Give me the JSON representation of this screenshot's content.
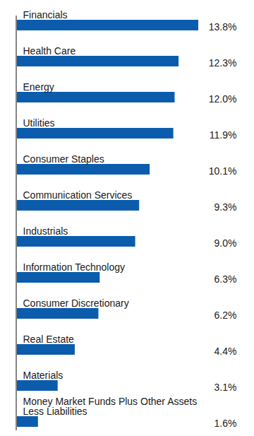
{
  "chart_data": {
    "type": "bar",
    "orientation": "horizontal",
    "categories": [
      "Financials",
      "Health Care",
      "Energy",
      "Utilities",
      "Consumer Staples",
      "Communication Services",
      "Industrials",
      "Information Technology",
      "Consumer Discretionary",
      "Real Estate",
      "Materials",
      "Money Market Funds Plus Other Assets\nLess Liabilities"
    ],
    "values": [
      13.8,
      12.3,
      12.0,
      11.9,
      10.1,
      9.3,
      9.0,
      6.3,
      6.2,
      4.4,
      3.1,
      1.6
    ],
    "value_labels": [
      "13.8%",
      "12.3%",
      "12.0%",
      "11.9%",
      "10.1%",
      "9.3%",
      "9.0%",
      "6.3%",
      "6.2%",
      "4.4%",
      "3.1%",
      "1.6%"
    ],
    "color": "#0b5cad",
    "xlim": [
      0,
      13.8
    ],
    "data_labels": true,
    "tick_labels": false,
    "grid": false
  }
}
